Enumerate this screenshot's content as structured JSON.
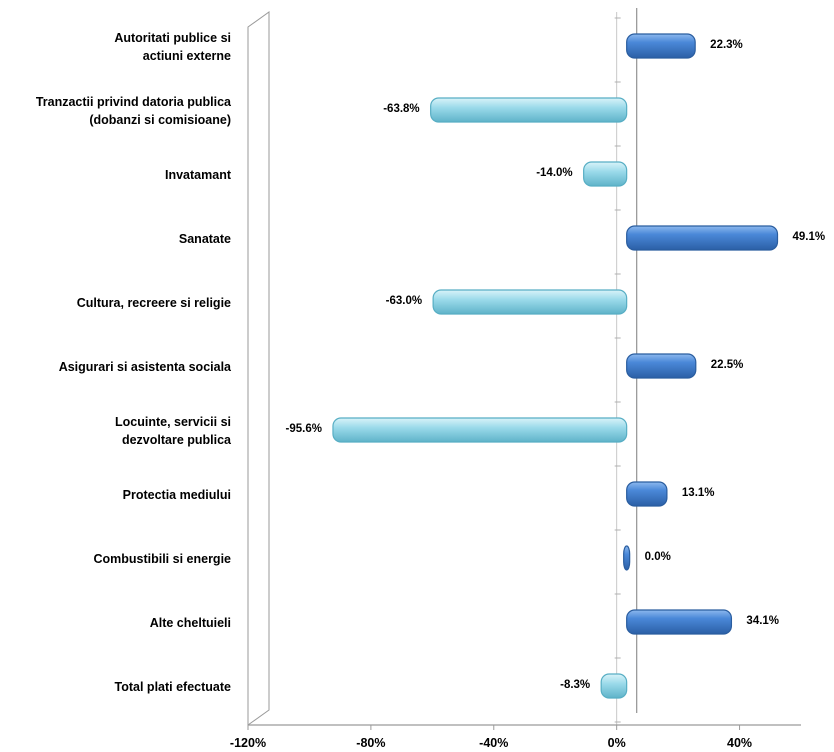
{
  "chart_data": {
    "type": "bar",
    "orientation": "horizontal",
    "categories": [
      [
        "Autoritati publice si",
        "actiuni externe"
      ],
      [
        "Tranzactii privind datoria publica",
        "(dobanzi si comisioane)"
      ],
      [
        "Invatamant"
      ],
      [
        "Sanatate"
      ],
      [
        "Cultura, recreere si religie"
      ],
      [
        "Asigurari si asistenta sociala"
      ],
      [
        "Locuinte, servicii si",
        "dezvoltare publica"
      ],
      [
        "Protectia mediului"
      ],
      [
        "Combustibili si energie"
      ],
      [
        "Alte cheltuieli"
      ],
      [
        "Total plati efectuate"
      ]
    ],
    "values": [
      22.3,
      -63.8,
      -14.0,
      49.1,
      -63.0,
      22.5,
      -95.6,
      13.1,
      0.0,
      34.1,
      -8.3
    ],
    "data_labels": [
      "22.3%",
      "-63.8%",
      "-14.0%",
      "49.1%",
      "-63.0%",
      "22.5%",
      "-95.6%",
      "13.1%",
      "0.0%",
      "34.1%",
      "-8.3%"
    ],
    "xlim": [
      -120,
      60
    ],
    "x_ticks": [
      -120,
      -80,
      -40,
      0,
      40
    ],
    "x_tick_labels": [
      "-120%",
      "-80%",
      "-40%",
      "0%",
      "40%"
    ],
    "title": "",
    "xlabel": "",
    "ylabel": "",
    "grid": false,
    "legend": "none",
    "colors": {
      "positive": "#3f7ed0",
      "positive_dark": "#2a5d9f",
      "negative": "#8fd3e3",
      "negative_dark": "#57aec4",
      "axis": "#9a9a9a"
    }
  }
}
